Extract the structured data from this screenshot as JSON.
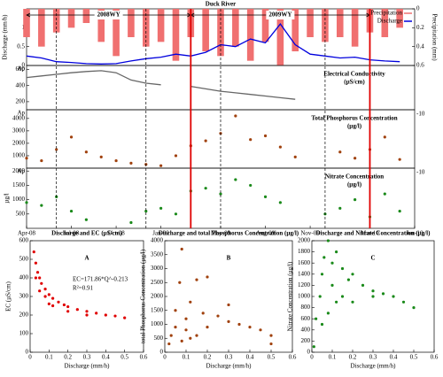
{
  "chart_data": [
    {
      "type": "line",
      "title": "Duck River",
      "ylabel": "Discharge (mm/h)",
      "y2label": "Precipitation (mm)",
      "xlim": [
        "2008-04",
        "2010-06"
      ],
      "ylim": [
        0,
        1.5
      ],
      "yticks": [
        0,
        0.5,
        1
      ],
      "y2lim": [
        0,
        0.6
      ],
      "y2ticks": [
        0,
        0.2,
        0.4,
        0.6
      ],
      "y2_inverted": true,
      "legend": "upper right",
      "x": [
        "2008-04",
        "2008-05",
        "2008-06",
        "2008-07",
        "2008-08",
        "2008-09",
        "2008-10",
        "2008-11",
        "2008-12",
        "2009-01",
        "2009-02",
        "2009-03",
        "2009-04",
        "2009-05",
        "2009-06",
        "2009-07",
        "2009-08",
        "2009-09",
        "2009-10",
        "2009-11",
        "2009-12",
        "2010-01",
        "2010-02",
        "2010-03",
        "2010-04",
        "2010-05"
      ],
      "series": [
        {
          "name": "Precipitation",
          "type": "bar",
          "axis": "y2",
          "color": "#f07070",
          "values": [
            0.3,
            0.4,
            0.25,
            0.2,
            0.15,
            0.35,
            0.5,
            0.3,
            0.4,
            0.35,
            0.55,
            0.3,
            0.45,
            0.5,
            0.4,
            0.55,
            0.35,
            0.6,
            0.45,
            0.3,
            0.35,
            0.3,
            0.4,
            0.25,
            0.3,
            0.2
          ]
        },
        {
          "name": "Discharge",
          "type": "line",
          "color": "#0000dd",
          "values": [
            0.25,
            0.2,
            0.1,
            0.08,
            0.05,
            0.04,
            0.05,
            0.12,
            0.18,
            0.22,
            0.3,
            0.25,
            0.35,
            0.55,
            0.5,
            0.7,
            0.6,
            1.1,
            0.55,
            0.3,
            0.25,
            0.2,
            0.22,
            0.15,
            0.12,
            0.1
          ]
        }
      ],
      "periods": [
        {
          "label": "2008WY",
          "start": "2008-04",
          "end": "2009-03"
        },
        {
          "label": "2009WY",
          "start": "2009-03",
          "end": "2010-03"
        }
      ],
      "dashed_lines": [
        "2008-06",
        "2008-12",
        "2009-05",
        "2009-12"
      ],
      "red_lines": [
        "2009-03",
        "2010-03"
      ]
    },
    {
      "type": "line",
      "annotation": [
        "Electrical Conductivity",
        "(µS/cm)"
      ],
      "corner_label": "Ap",
      "xlim": [
        "2008-04",
        "2010-06"
      ],
      "ylim": [
        100,
        650
      ],
      "yticks": [
        200,
        400,
        600
      ],
      "x": [
        "2008-04",
        "2008-05",
        "2008-06",
        "2008-07",
        "2008-08",
        "2008-09",
        "2008-10",
        "2008-11",
        "2008-12",
        "2009-01",
        "2009-02",
        "2009-03",
        "2009-04",
        "2009-05",
        "2009-06",
        "2009-07",
        "2009-08",
        "2009-09",
        "2009-10",
        "2009-11",
        "2009-12",
        "2010-01",
        "2010-02",
        "2010-03",
        "2010-04",
        "2010-05"
      ],
      "series": [
        {
          "type": "line",
          "color": "#666666",
          "values": [
            500,
            520,
            540,
            560,
            575,
            585,
            560,
            470,
            430,
            410,
            null,
            390,
            360,
            330,
            310,
            290,
            270,
            250,
            230,
            null,
            null,
            null,
            null,
            null,
            null,
            null
          ]
        }
      ]
    },
    {
      "type": "scatter",
      "annotation": [
        "Total Phosphorus Concentration",
        "(µg/l)"
      ],
      "corner_label": "Ap",
      "right_label": "-10",
      "xlim": [
        "2008-04",
        "2010-06"
      ],
      "ylim": [
        0,
        4700
      ],
      "yticks": [
        1000,
        2000,
        3000,
        4000
      ],
      "x": [
        "2008-04",
        "2008-05",
        "2008-06",
        "2008-07",
        "2008-08",
        "2008-09",
        "2008-10",
        "2008-11",
        "2008-12",
        "2009-01",
        "2009-02",
        "2009-03",
        "2009-04",
        "2009-05",
        "2009-06",
        "2009-07",
        "2009-08",
        "2009-09",
        "2009-10",
        "2009-11",
        "2009-12",
        "2010-01",
        "2010-02",
        "2010-03",
        "2010-04",
        "2010-05"
      ],
      "series": [
        {
          "type": "scatter",
          "color": "#a0410d",
          "values": [
            800,
            600,
            1500,
            2500,
            1300,
            900,
            600,
            400,
            300,
            200,
            1000,
            1800,
            2200,
            2800,
            4200,
            2300,
            2600,
            1700,
            900,
            null,
            null,
            1300,
            800,
            1500,
            2500,
            700
          ]
        }
      ]
    },
    {
      "type": "scatter",
      "annotation": [
        "Nitrate Concentration",
        "(µg/l)"
      ],
      "ylabel": "µg/l",
      "corner_label": "Ap",
      "right_label": "-10",
      "xlim": [
        "2008-04",
        "2010-06"
      ],
      "ylim": [
        0,
        2100
      ],
      "yticks": [
        500,
        1000,
        1500,
        2000
      ],
      "xticks": [
        {
          "value": "2008-04",
          "label": "Apr-08"
        },
        {
          "value": "2008-07",
          "label": "Jul-08"
        },
        {
          "value": "2008-10",
          "label": "Oct-08"
        },
        {
          "value": "2009-01",
          "label": "Jan-09"
        },
        {
          "value": "2009-05",
          "label": "May-09"
        },
        {
          "value": "2009-08",
          "label": "Aug-09"
        },
        {
          "value": "2009-11",
          "label": "Nov-09"
        },
        {
          "value": "2010-03",
          "label": "Mar-10"
        },
        {
          "value": "2010-06",
          "label": "Jun-10"
        }
      ],
      "x": [
        "2008-04",
        "2008-05",
        "2008-06",
        "2008-07",
        "2008-08",
        "2008-09",
        "2008-10",
        "2008-11",
        "2008-12",
        "2009-01",
        "2009-02",
        "2009-03",
        "2009-04",
        "2009-05",
        "2009-06",
        "2009-07",
        "2009-08",
        "2009-09",
        "2009-10",
        "2009-11",
        "2009-12",
        "2010-01",
        "2010-02",
        "2010-03",
        "2010-04",
        "2010-05"
      ],
      "series": [
        {
          "type": "scatter",
          "color": "#1a8a1a",
          "values": [
            900,
            800,
            1100,
            600,
            300,
            null,
            null,
            200,
            600,
            700,
            500,
            1300,
            1400,
            1200,
            1700,
            1500,
            1100,
            900,
            null,
            null,
            500,
            700,
            1000,
            400,
            1200,
            600
          ]
        }
      ]
    },
    {
      "type": "scatter",
      "title": "Discharge and EC (µS/cm)",
      "panel_label": "A",
      "xlabel": "Discharge (mm/h)",
      "ylabel": "EC (µS/cm)",
      "annotations": [
        "EC=171.86*Q^-0.213",
        "R²=0.91"
      ],
      "xlim": [
        0,
        0.6
      ],
      "xticks": [
        0,
        0.1,
        0.2,
        0.3,
        0.4,
        0.5,
        0.6
      ],
      "ylim": [
        0,
        600
      ],
      "yticks": [
        0,
        100,
        200,
        300,
        400,
        500,
        600
      ],
      "series": [
        {
          "type": "scatter",
          "color": "#e00000",
          "x": [
            0.02,
            0.03,
            0.04,
            0.05,
            0.06,
            0.08,
            0.1,
            0.12,
            0.15,
            0.18,
            0.2,
            0.25,
            0.3,
            0.35,
            0.4,
            0.45,
            0.5,
            0.03,
            0.05,
            0.08,
            0.1,
            0.12,
            0.2,
            0.3
          ],
          "values": [
            540,
            480,
            430,
            400,
            370,
            340,
            310,
            290,
            270,
            255,
            245,
            230,
            220,
            210,
            200,
            195,
            185,
            400,
            330,
            300,
            260,
            250,
            220,
            200
          ]
        }
      ]
    },
    {
      "type": "scatter",
      "title": "Discharge and total Phosphorus Concentration (µg/l)",
      "panel_label": "B",
      "xlabel": "Discharge (mm/h)",
      "ylabel": "total Phosphorus Concentration (µg/l)",
      "xlim": [
        0,
        0.6
      ],
      "xticks": [
        0,
        0.1,
        0.2,
        0.3,
        0.4,
        0.5,
        0.6
      ],
      "ylim": [
        0,
        4000
      ],
      "yticks": [
        0,
        500,
        1000,
        1500,
        2000,
        2500,
        3000,
        3500,
        4000
      ],
      "series": [
        {
          "type": "scatter",
          "color": "#a0410d",
          "x": [
            0.02,
            0.03,
            0.05,
            0.05,
            0.07,
            0.08,
            0.1,
            0.1,
            0.12,
            0.15,
            0.15,
            0.18,
            0.2,
            0.2,
            0.25,
            0.3,
            0.3,
            0.35,
            0.4,
            0.45,
            0.5,
            0.5,
            0.08,
            0.12
          ],
          "values": [
            300,
            600,
            900,
            1500,
            2500,
            3700,
            1200,
            800,
            1800,
            2600,
            600,
            1400,
            2700,
            900,
            1300,
            1100,
            1700,
            1000,
            900,
            800,
            600,
            300,
            400,
            500
          ]
        }
      ]
    },
    {
      "type": "scatter",
      "title": "Discharge and Nitrate Concentration (µg/l)",
      "panel_label": "C",
      "xlabel": "Discharge (mm/h)",
      "ylabel": "Nitrate Concentration (µg/l)",
      "xlim": [
        0,
        0.6
      ],
      "xticks": [
        0,
        0.1,
        0.2,
        0.3,
        0.4,
        0.5,
        0.6
      ],
      "ylim": [
        0,
        2000
      ],
      "yticks": [
        0,
        200,
        400,
        600,
        800,
        1000,
        1200,
        1400,
        1600,
        1800,
        2000
      ],
      "series": [
        {
          "type": "scatter",
          "color": "#1a8a1a",
          "x": [
            0.01,
            0.02,
            0.04,
            0.05,
            0.06,
            0.08,
            0.1,
            0.1,
            0.12,
            0.15,
            0.18,
            0.2,
            0.25,
            0.3,
            0.35,
            0.4,
            0.45,
            0.5,
            0.08,
            0.12,
            0.2,
            0.3,
            0.15,
            0.05
          ],
          "values": [
            100,
            600,
            1000,
            1400,
            1700,
            2000,
            1200,
            1600,
            1800,
            1500,
            1300,
            1400,
            1200,
            1100,
            1050,
            1000,
            900,
            800,
            700,
            900,
            900,
            1000,
            1000,
            500
          ]
        }
      ]
    }
  ]
}
